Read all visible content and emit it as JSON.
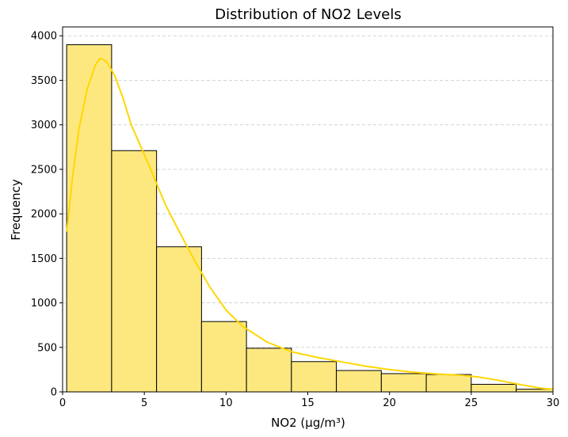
{
  "chart_data": {
    "type": "bar",
    "title": "Distribution of NO2 Levels",
    "xlabel": "NO2 (µg/m³)",
    "ylabel": "Frequency",
    "xlim": [
      0,
      30
    ],
    "ylim": [
      0,
      4100
    ],
    "xticks": [
      0,
      5,
      10,
      15,
      20,
      25,
      30
    ],
    "yticks": [
      0,
      500,
      1000,
      1500,
      2000,
      2500,
      3000,
      3500,
      4000
    ],
    "grid": "y-dashed",
    "bins": [
      {
        "x0": 0.25,
        "x1": 3.0,
        "count": 3900
      },
      {
        "x0": 3.0,
        "x1": 5.75,
        "count": 2710
      },
      {
        "x0": 5.75,
        "x1": 8.5,
        "count": 1630
      },
      {
        "x0": 8.5,
        "x1": 11.25,
        "count": 790
      },
      {
        "x0": 11.25,
        "x1": 14.0,
        "count": 490
      },
      {
        "x0": 14.0,
        "x1": 16.75,
        "count": 340
      },
      {
        "x0": 16.75,
        "x1": 19.5,
        "count": 240
      },
      {
        "x0": 19.5,
        "x1": 22.25,
        "count": 205
      },
      {
        "x0": 22.25,
        "x1": 25.0,
        "count": 195
      },
      {
        "x0": 25.0,
        "x1": 27.75,
        "count": 85
      },
      {
        "x0": 27.75,
        "x1": 30.0,
        "count": 30
      }
    ],
    "kde": {
      "x": [
        0.25,
        0.6,
        1.0,
        1.5,
        2.0,
        2.3,
        2.7,
        3.2,
        3.7,
        4.2,
        4.8,
        5.5,
        6.3,
        7.0,
        8.0,
        9.0,
        10.0,
        11.0,
        12.5,
        14.0,
        15.5,
        17.0,
        18.5,
        20.0,
        21.5,
        23.0,
        24.5,
        25.5,
        26.5,
        27.5,
        28.5,
        29.3,
        30.0
      ],
      "y": [
        1800,
        2400,
        2950,
        3400,
        3670,
        3750,
        3710,
        3550,
        3300,
        3000,
        2750,
        2450,
        2100,
        1850,
        1500,
        1180,
        920,
        740,
        560,
        450,
        390,
        340,
        290,
        250,
        220,
        200,
        185,
        165,
        135,
        100,
        65,
        40,
        30
      ]
    },
    "colors": {
      "bar_fill": "#fde880",
      "bar_edge": "#000000",
      "kde_line": "#ffd700",
      "grid": "#d3d3d3"
    }
  }
}
